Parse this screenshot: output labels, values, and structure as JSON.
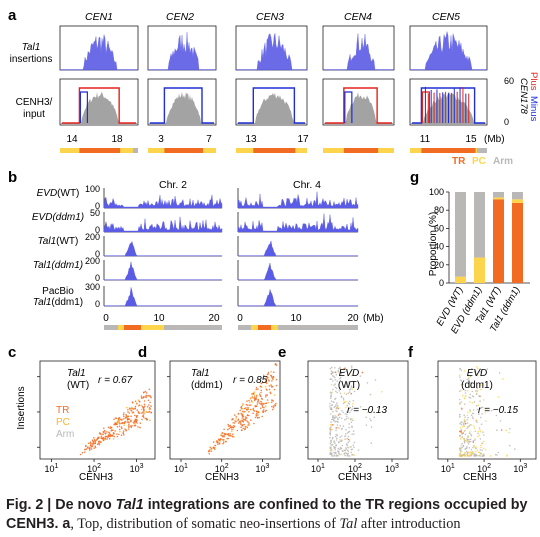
{
  "panels": {
    "a": {
      "letter": "a",
      "cen_labels": [
        "CEN1",
        "CEN2",
        "CEN3",
        "CEN4",
        "CEN5"
      ],
      "top_ylabel_1": "Tal1",
      "top_ylabel_2": "insertions",
      "bottom_ylabel_1": "CENH3/",
      "bottom_ylabel_2": "input",
      "right_label": "CEN178",
      "right_plus": "Plus",
      "right_minus": "Minus",
      "right_ticks": [
        "60",
        "0"
      ],
      "x_ticks": [
        [
          "14",
          "18"
        ],
        [
          "3",
          "7"
        ],
        [
          "13",
          "17"
        ],
        [
          "",
          ""
        ],
        [
          "11",
          "15"
        ]
      ],
      "x_unit": "(Mb)",
      "legend": {
        "tr": "TR",
        "pc": "PC",
        "arm": "Arm"
      }
    },
    "b": {
      "letter": "b",
      "chr_labels": [
        "Chr. 2",
        "Chr. 4"
      ],
      "rows": [
        {
          "label1": "EVD",
          "label2": "(WT)",
          "ticks": [
            "100",
            "0"
          ]
        },
        {
          "label1": "EVD",
          "label2": "(ddm1)",
          "ticks": [
            "50",
            "0"
          ]
        },
        {
          "label1": "Tal1",
          "label2": "(WT)",
          "ticks": [
            "200",
            "0"
          ]
        },
        {
          "label1": "Tal1",
          "label2": "(ddm1)",
          "ticks": [
            "200",
            "0"
          ]
        },
        {
          "label1": "PacBio",
          "label2": "Tal1(ddm1)",
          "ticks": [
            "300",
            "0"
          ]
        }
      ],
      "x_ticks": [
        "0",
        "10",
        "20"
      ],
      "x_unit": "(Mb)"
    },
    "g": {
      "letter": "g",
      "ylabel": "Proportion (%)",
      "y_ticks": [
        "100",
        "80",
        "60",
        "40",
        "20",
        "0"
      ],
      "colors": {
        "tr": "#f26b22",
        "pc": "#fdd54c",
        "arm": "#b9b8b6"
      }
    },
    "c": {
      "letter": "c",
      "title1": "Tal1",
      "title2": "(WT)",
      "r": "r = 0.67",
      "ylabel": "Insertions",
      "xlabel": "CENH3",
      "legend": {
        "tr": "TR",
        "pc": "PC",
        "arm": "Arm"
      }
    },
    "d": {
      "letter": "d",
      "title1": "Tal1",
      "title2": "(ddm1)",
      "r": "r = 0.85",
      "xlabel": "CENH3"
    },
    "e": {
      "letter": "e",
      "title1": "EVD",
      "title2": "(WT)",
      "r": "r = −0.13",
      "xlabel": "CENH3"
    },
    "f": {
      "letter": "f",
      "title1": "EVD",
      "title2": "(ddm1)",
      "r": "r = −0.15",
      "xlabel": "CENH3"
    }
  },
  "chart_data": {
    "type": "bar",
    "stacked": true,
    "categories": [
      "EVD (WT)",
      "EVD (ddm1)",
      "Tal1 (WT)",
      "Tal1 (ddm1)"
    ],
    "series": [
      {
        "name": "TR",
        "values": [
          0,
          0,
          92,
          88
        ]
      },
      {
        "name": "PC",
        "values": [
          7,
          28,
          2,
          4
        ]
      },
      {
        "name": "Arm",
        "values": [
          93,
          72,
          6,
          8
        ]
      }
    ],
    "ylabel": "Proportion (%)",
    "ylim": [
      0,
      100
    ]
  },
  "caption": {
    "lead": "Fig. 2 | De novo ",
    "italic1": "Tal1",
    "mid": " integrations are confined to the TR regions occupied by CENH3.",
    "a_letter": " a",
    "text": ", Top, distribution of somatic neo-insertions of ",
    "italic2": "Tal",
    "end": " after introduction"
  }
}
